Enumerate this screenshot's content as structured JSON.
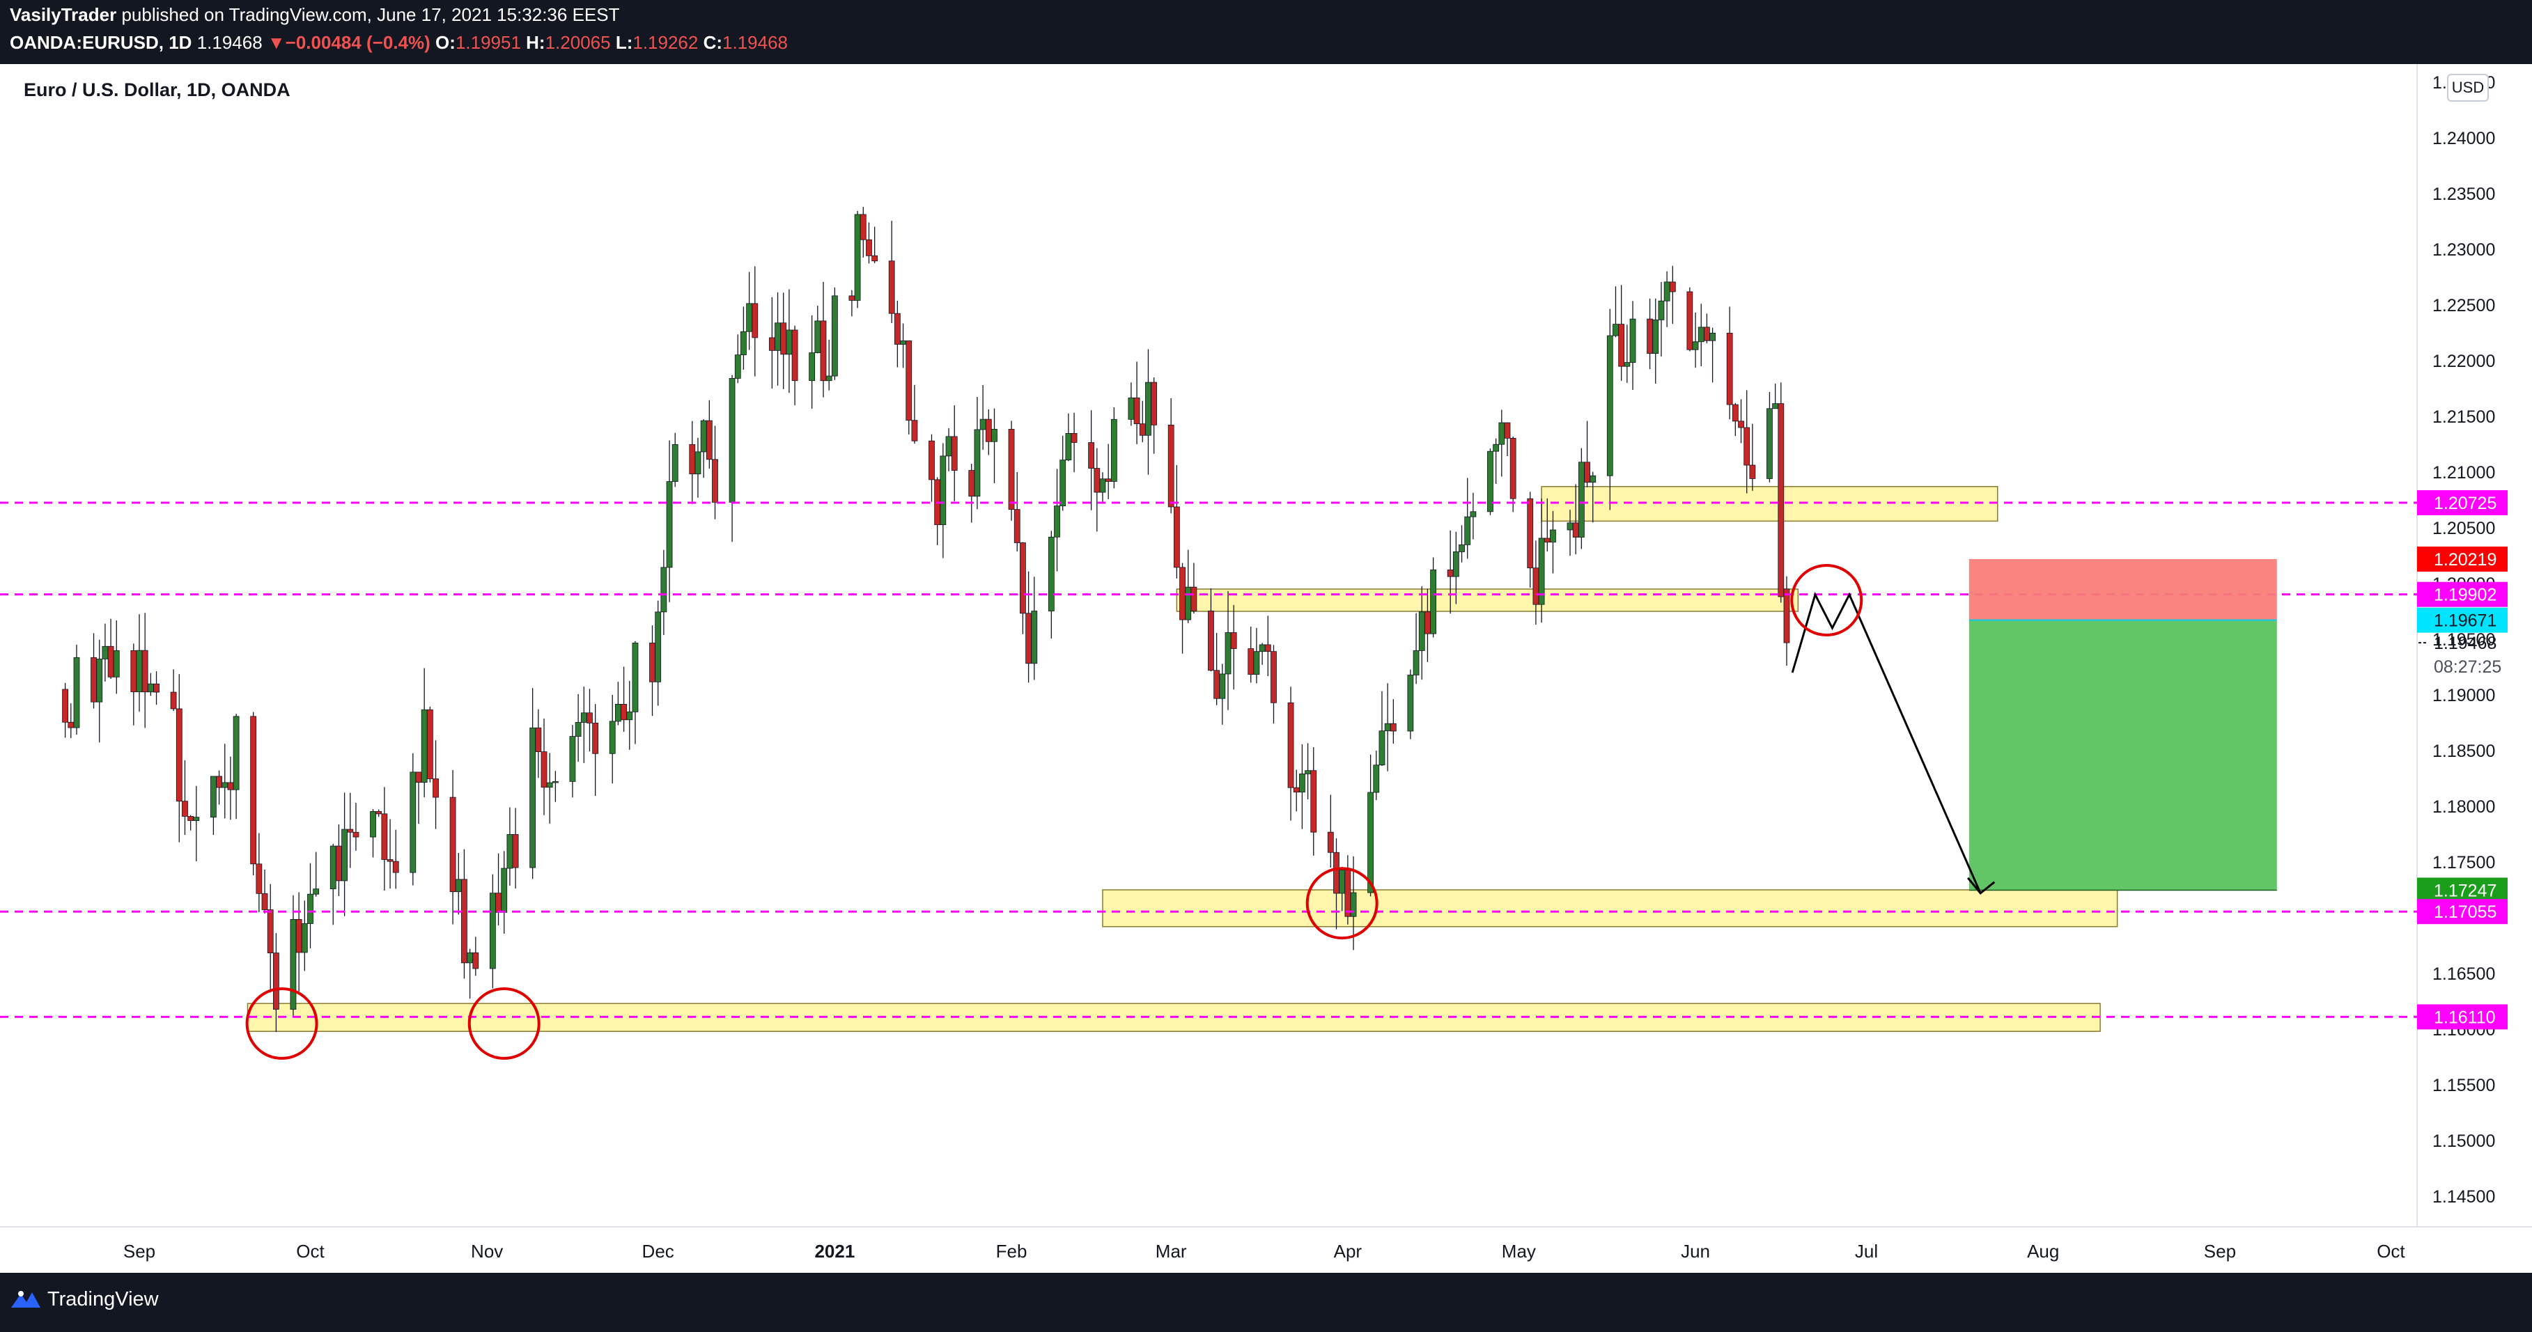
{
  "header": {
    "author": "VasilyTrader",
    "published": "published on TradingView.com, June 17, 2021 15:32:36 EEST",
    "symbol": "OANDA:EURUSD, 1D",
    "last": "1.19468",
    "change": "−0.00484 (−0.4%)",
    "open_label": "O:",
    "open": "1.19951",
    "high_label": "H:",
    "high": "1.20065",
    "low_label": "L:",
    "low": "1.19262",
    "close_label": "C:",
    "close": "1.19468"
  },
  "chart_title": "Euro / U.S. Dollar, 1D, OANDA",
  "currency_badge": "USD",
  "footer": {
    "brand": "TradingView"
  },
  "colors": {
    "up": "#26a69a",
    "down": "#ef5350",
    "upBody": "#2e7d32",
    "downBody": "#c62828",
    "level": "#ff00ff",
    "zone": "#fff59d",
    "stop": "#f77b74",
    "target": "#5bc35e",
    "annotation": "#e00000"
  },
  "chart_data": {
    "type": "candlestick",
    "title": "Euro / U.S. Dollar, 1D, OANDA",
    "ylim": [
      1.1425,
      1.2465
    ],
    "price_ticks": [
      "1.14500",
      "1.15000",
      "1.15500",
      "1.16000",
      "1.16500",
      "1.17000",
      "1.17500",
      "1.18000",
      "1.18500",
      "1.19000",
      "1.19500",
      "1.20000",
      "1.20500",
      "1.21000",
      "1.21500",
      "1.22000",
      "1.22500",
      "1.23000",
      "1.23500",
      "1.24000",
      "1.24500"
    ],
    "time_labels": [
      {
        "label": "Sep",
        "date": "2020-09-01"
      },
      {
        "label": "Oct",
        "date": "2020-10-01"
      },
      {
        "label": "Nov",
        "date": "2020-11-01"
      },
      {
        "label": "Dec",
        "date": "2020-12-01"
      },
      {
        "label": "2021",
        "date": "2021-01-01",
        "bold": true
      },
      {
        "label": "Feb",
        "date": "2021-02-01"
      },
      {
        "label": "Mar",
        "date": "2021-03-01"
      },
      {
        "label": "Apr",
        "date": "2021-04-01"
      },
      {
        "label": "May",
        "date": "2021-05-01"
      },
      {
        "label": "Jun",
        "date": "2021-06-01"
      },
      {
        "label": "Jul",
        "date": "2021-07-01"
      },
      {
        "label": "Aug",
        "date": "2021-08-01"
      },
      {
        "label": "Sep",
        "date": "2021-09-01"
      },
      {
        "label": "Oct",
        "date": "2021-10-01"
      }
    ],
    "anchors": [
      {
        "date": "2020-08-19",
        "close": 1.1905
      },
      {
        "date": "2020-09-01",
        "close": 1.1935
      },
      {
        "date": "2020-09-10",
        "close": 1.1815
      },
      {
        "date": "2020-09-18",
        "close": 1.1845
      },
      {
        "date": "2020-09-25",
        "close": 1.163
      },
      {
        "date": "2020-10-02",
        "close": 1.1715
      },
      {
        "date": "2020-10-09",
        "close": 1.1805
      },
      {
        "date": "2020-10-16",
        "close": 1.1725
      },
      {
        "date": "2020-10-21",
        "close": 1.1855
      },
      {
        "date": "2020-10-30",
        "close": 1.1645
      },
      {
        "date": "2020-11-04",
        "close": 1.172
      },
      {
        "date": "2020-11-09",
        "close": 1.1835
      },
      {
        "date": "2020-11-20",
        "close": 1.1865
      },
      {
        "date": "2020-11-30",
        "close": 1.193
      },
      {
        "date": "2020-12-04",
        "close": 1.212
      },
      {
        "date": "2020-12-11",
        "close": 1.211
      },
      {
        "date": "2020-12-17",
        "close": 1.227
      },
      {
        "date": "2020-12-21",
        "close": 1.2215
      },
      {
        "date": "2020-12-31",
        "close": 1.2215
      },
      {
        "date": "2021-01-06",
        "close": 1.2325
      },
      {
        "date": "2021-01-12",
        "close": 1.221
      },
      {
        "date": "2021-01-18",
        "close": 1.208
      },
      {
        "date": "2021-01-29",
        "close": 1.2135
      },
      {
        "date": "2021-02-04",
        "close": 1.1965
      },
      {
        "date": "2021-02-11",
        "close": 1.212
      },
      {
        "date": "2021-02-16",
        "close": 1.2105
      },
      {
        "date": "2021-02-25",
        "close": 1.2175
      },
      {
        "date": "2021-03-04",
        "close": 1.1965
      },
      {
        "date": "2021-03-09",
        "close": 1.19
      },
      {
        "date": "2021-03-12",
        "close": 1.1955
      },
      {
        "date": "2021-03-18",
        "close": 1.192
      },
      {
        "date": "2021-03-24",
        "close": 1.1815
      },
      {
        "date": "2021-03-31",
        "close": 1.1715
      },
      {
        "date": "2021-04-05",
        "close": 1.179
      },
      {
        "date": "2021-04-09",
        "close": 1.1895
      },
      {
        "date": "2021-04-19",
        "close": 1.2035
      },
      {
        "date": "2021-04-23",
        "close": 1.209
      },
      {
        "date": "2021-04-29",
        "close": 1.2115
      },
      {
        "date": "2021-05-04",
        "close": 1.2015
      },
      {
        "date": "2021-05-12",
        "close": 1.208
      },
      {
        "date": "2021-05-18",
        "close": 1.222
      },
      {
        "date": "2021-05-25",
        "close": 1.2245
      },
      {
        "date": "2021-06-02",
        "close": 1.2205
      },
      {
        "date": "2021-06-08",
        "close": 1.217
      },
      {
        "date": "2021-06-11",
        "close": 1.2105
      },
      {
        "date": "2021-06-15",
        "close": 1.2125
      },
      {
        "date": "2021-06-16",
        "close": 1.1995
      },
      {
        "date": "2021-06-17",
        "close": 1.19468
      }
    ],
    "last_candle": {
      "open": 1.19951,
      "high": 1.20065,
      "low": 1.19262,
      "close": 1.19468
    },
    "horizontal_levels": [
      1.20725,
      1.19902,
      1.17055,
      1.1611
    ],
    "zones": [
      {
        "from": "2021-05-05",
        "to": "2021-07-24",
        "low": 1.2056,
        "high": 1.2087
      },
      {
        "from": "2021-03-02",
        "to": "2021-06-19",
        "low": 1.1975,
        "high": 1.1995
      },
      {
        "from": "2021-02-17",
        "to": "2021-08-14",
        "low": 1.1692,
        "high": 1.1725
      },
      {
        "from": "2020-09-20",
        "to": "2021-08-11",
        "low": 1.1598,
        "high": 1.1623
      }
    ],
    "circles": [
      {
        "date": "2020-09-26",
        "price": 1.1605
      },
      {
        "date": "2020-11-04",
        "price": 1.1605
      },
      {
        "date": "2021-03-31",
        "price": 1.1713
      },
      {
        "date": "2021-06-24",
        "price": 1.1985
      }
    ],
    "projection_path": [
      {
        "date": "2021-06-18",
        "price": 1.192
      },
      {
        "date": "2021-06-22",
        "price": 1.199
      },
      {
        "date": "2021-06-25",
        "price": 1.196
      },
      {
        "date": "2021-06-28",
        "price": 1.199
      },
      {
        "date": "2021-07-21",
        "price": 1.1722
      }
    ],
    "position": {
      "from": "2021-07-19",
      "to": "2021-09-11",
      "stop": 1.20219,
      "entry": 1.19671,
      "target": 1.17247
    },
    "price_labels": [
      {
        "value": 1.20725,
        "text": "1.20725",
        "bg": "#ff00ff",
        "fg": "#ffffff"
      },
      {
        "value": 1.20219,
        "text": "1.20219",
        "bg": "#ff0000",
        "fg": "#ffffff"
      },
      {
        "value": 1.19902,
        "text": "1.19902",
        "bg": "#ff00ff",
        "fg": "#ffffff"
      },
      {
        "value": 1.19671,
        "text": "1.19671",
        "bg": "#00e5ff",
        "fg": "#131722"
      },
      {
        "value": 1.17247,
        "text": "1.17247",
        "bg": "#1b9e1b",
        "fg": "#ffffff"
      },
      {
        "value": 1.17055,
        "text": "1.17055",
        "bg": "#ff00ff",
        "fg": "#ffffff"
      },
      {
        "value": 1.1611,
        "text": "1.16110",
        "bg": "#ff00ff",
        "fg": "#ffffff"
      }
    ],
    "current_price": {
      "value": 1.19468,
      "text": "1.19468",
      "countdown": "08:27:25"
    }
  }
}
